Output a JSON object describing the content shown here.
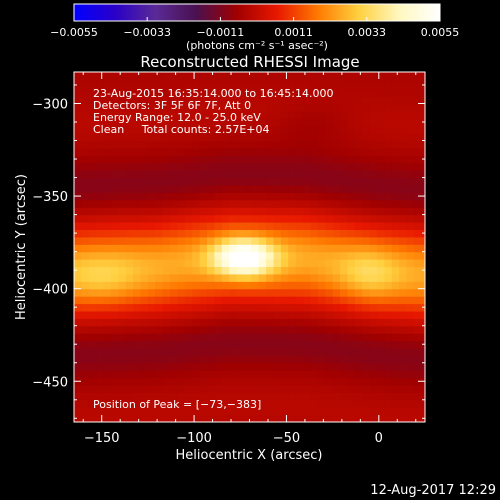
{
  "chart_data": {
    "type": "heatmap",
    "title": "Reconstructed RHESSI Image",
    "xlabel": "Heliocentric X (arcsec)",
    "ylabel": "Heliocentric Y (arcsec)",
    "xlim": [
      -165,
      25
    ],
    "ylim": [
      -472,
      -283
    ],
    "x_ticks": [
      -150,
      -100,
      -50,
      0
    ],
    "y_ticks": [
      -300,
      -350,
      -400,
      -450
    ],
    "x_tick_labels": [
      "−150",
      "−100",
      "−50",
      "0"
    ],
    "y_tick_labels": [
      "−300",
      "−350",
      "−400",
      "−450"
    ],
    "colorbar": {
      "ticks": [
        -0.0055,
        -0.0033,
        -0.0011,
        0.0011,
        0.0033,
        0.0055
      ],
      "tick_labels": [
        "−0.0055",
        "−0.0033",
        "−0.0011",
        "0.0011",
        "0.0033",
        "0.0055"
      ],
      "range": [
        -0.0055,
        0.0055
      ],
      "units": "(photons cm⁻² s⁻¹ asec⁻²)",
      "colors": [
        "#0000ff",
        "#2a00c8",
        "#5a2a96",
        "#4a1050",
        "#a00000",
        "#e81800",
        "#ff7a00",
        "#ffd040",
        "#fff8c0",
        "#ffffff"
      ]
    },
    "annotations": [
      "23-Aug-2015 16:35:14.000 to 16:45:14.000",
      "Detectors: 3F 5F 6F 7F, Att 0",
      "Energy Range: 12.0 - 25.0 keV",
      "Clean     Total counts: 2.57E+04"
    ],
    "peak_label": "Position of Peak = [−73,−383]",
    "peak": [
      -73,
      -383
    ],
    "field_components": [
      {
        "kind": "ridge",
        "x": [
          -165,
          -120,
          -80,
          -40,
          0,
          25
        ],
        "y": [
          -390,
          -388,
          -383,
          -384,
          -390,
          -392
        ],
        "width": 22,
        "amp": 0.0029
      },
      {
        "kind": "blob",
        "x": -73,
        "y": -383,
        "sx": 16,
        "sy": 10,
        "amp": 0.0038
      },
      {
        "kind": "blob",
        "x": -5,
        "y": -392,
        "sx": 16,
        "sy": 14,
        "amp": 0.0009
      },
      {
        "kind": "blob",
        "x": -150,
        "y": -395,
        "sx": 22,
        "sy": 14,
        "amp": 0.0008
      },
      {
        "kind": "blob",
        "x": -35,
        "y": -310,
        "sx": 22,
        "sy": 12,
        "amp": -0.0003
      }
    ],
    "field_baseline": -0.0004,
    "pixel_size_arcsec": 4
  },
  "timestamp": "12-Aug-2017 12:29"
}
